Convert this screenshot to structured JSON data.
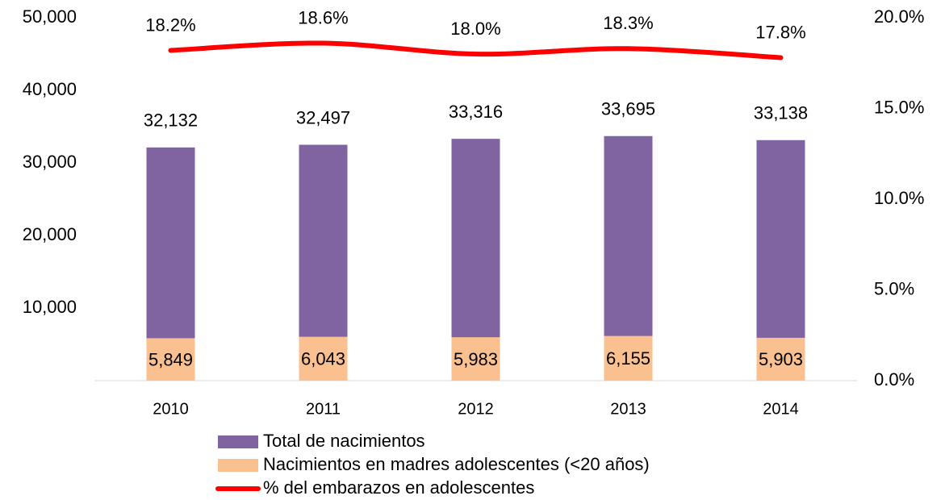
{
  "chart_data": {
    "type": "bar",
    "categories": [
      "2010",
      "2011",
      "2012",
      "2013",
      "2014"
    ],
    "series": [
      {
        "name": "Total de nacimientos",
        "color": "#8064a2",
        "values": [
          32132,
          32497,
          33316,
          33695,
          33138
        ],
        "value_labels": [
          "32,132",
          "32,497",
          "33,316",
          "33,695",
          "33,138"
        ]
      },
      {
        "name": "Nacimientos en madres adolescentes (<20 años)",
        "color": "#fac090",
        "values": [
          5849,
          6043,
          5983,
          6155,
          5903
        ],
        "value_labels": [
          "5,849",
          "6,043",
          "5,983",
          "6,155",
          "5,903"
        ]
      },
      {
        "name": "% del embarazos en adolescentes",
        "type": "line",
        "axis": "y2",
        "color": "#ff0000",
        "values": [
          18.2,
          18.6,
          18.0,
          18.3,
          17.8
        ],
        "value_labels": [
          "18.2%",
          "18.6%",
          "18.0%",
          "18.3%",
          "17.8%"
        ]
      }
    ],
    "ylim": [
      0,
      50000
    ],
    "yticks": [
      {
        "value": 10000,
        "label": "10,000"
      },
      {
        "value": 20000,
        "label": "20,000"
      },
      {
        "value": 30000,
        "label": "30,000"
      },
      {
        "value": 40000,
        "label": "40,000"
      },
      {
        "value": 50000,
        "label": "50,000"
      }
    ],
    "y2lim": [
      0,
      20
    ],
    "y2ticks": [
      {
        "value": 0,
        "label": "0.0%"
      },
      {
        "value": 5,
        "label": "5.0%"
      },
      {
        "value": 10,
        "label": "10.0%"
      },
      {
        "value": 15,
        "label": "15.0%"
      },
      {
        "value": 20,
        "label": "20.0%"
      }
    ],
    "legend": "bottom"
  }
}
